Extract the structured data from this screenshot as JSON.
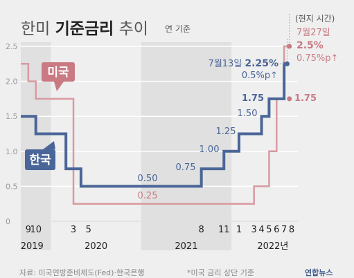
{
  "title_light_1": "한미 ",
  "title_bold": "기준금리",
  "title_light_2": " 추이",
  "subtitle": "연 기준",
  "source": "자료: 미국연방준비제도(Fed)·한국은행",
  "footnote": "*미국 금리 상단 기준",
  "logo_text": "연합뉴스",
  "colors": {
    "us": "#c97a82",
    "kr": "#4a6597",
    "us_line": "#d89aa1",
    "band": "#e0e0e0",
    "axis_text": "#999999",
    "bg": "#efefef"
  },
  "chart_data": {
    "type": "line",
    "step": true,
    "ylim": [
      0,
      2.5
    ],
    "yticks": [
      "0",
      "0.5",
      "1.0",
      "1.5",
      "2.0",
      "2.5"
    ],
    "x_unit": "month index from Aug 2019 (0) to Aug 2022 (36)",
    "xlim": [
      0,
      36
    ],
    "xticks": [
      {
        "label": "9",
        "x": 1
      },
      {
        "label": "10",
        "x": 2
      },
      {
        "label": "3",
        "x": 7
      },
      {
        "label": "5",
        "x": 9
      },
      {
        "label": "8",
        "x": 24
      },
      {
        "label": "11",
        "x": 27
      },
      {
        "label": "1",
        "x": 29
      },
      {
        "label": "3",
        "x": 31
      },
      {
        "label": "4",
        "x": 32
      },
      {
        "label": "5",
        "x": 33
      },
      {
        "label": "6",
        "x": 34
      },
      {
        "label": "7",
        "x": 35
      },
      {
        "label": "8",
        "x": 36
      }
    ],
    "years": [
      {
        "label": "2019",
        "x": 1.5,
        "band": [
          0,
          4
        ]
      },
      {
        "label": "2020",
        "x": 10,
        "band": null
      },
      {
        "label": "2021",
        "x": 22,
        "band": [
          16,
          28
        ]
      },
      {
        "label": "2022년",
        "x": 33.5,
        "band": null
      }
    ],
    "series": [
      {
        "name": "미국",
        "points": [
          [
            0,
            2.25
          ],
          [
            1,
            2.0
          ],
          [
            2,
            1.75
          ],
          [
            7,
            0.25
          ],
          [
            31,
            0.5
          ],
          [
            33,
            1.0
          ],
          [
            34,
            1.75
          ],
          [
            35,
            2.5
          ]
        ],
        "end_x": 35.7
      },
      {
        "name": "한국",
        "points": [
          [
            0,
            1.5
          ],
          [
            2,
            1.25
          ],
          [
            6,
            0.75
          ],
          [
            8,
            0.5
          ],
          [
            24,
            0.75
          ],
          [
            27,
            1.0
          ],
          [
            29,
            1.25
          ],
          [
            32,
            1.5
          ],
          [
            33,
            1.75
          ],
          [
            35,
            2.25
          ]
        ],
        "end_x": 35.4
      }
    ],
    "annotations": {
      "us_flat_label": "0.25",
      "kr_flat_label": "0.50",
      "kr_steps": [
        "0.75",
        "1.00",
        "1.25",
        "1.50"
      ],
      "kr_jun_value": "1.75",
      "kr_final_date": "7월13일",
      "kr_final_value": "2.25%",
      "kr_final_change": "0.5%p↑",
      "us_local_time": "(현지 시간)",
      "us_final_date": "7월27일",
      "us_final_value": "2.5%",
      "us_final_change": "0.75%p↑",
      "us_jun_value": "1.75"
    }
  }
}
